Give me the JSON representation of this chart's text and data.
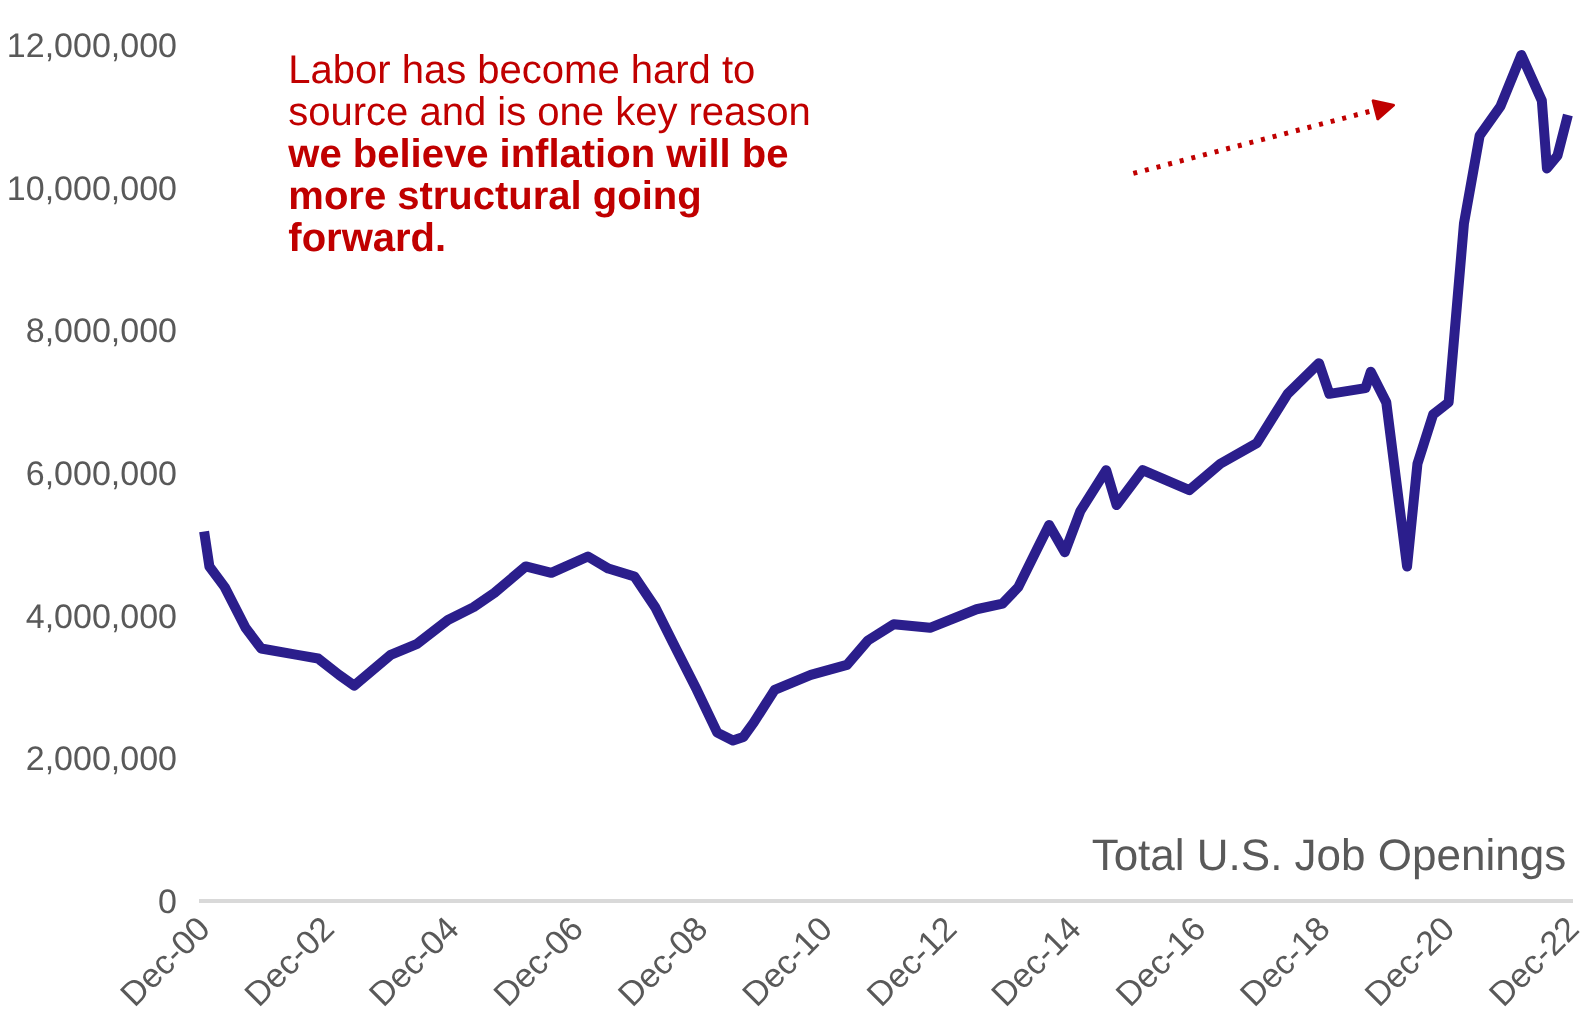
{
  "chart_data": {
    "type": "line",
    "title": "Total U.S. Job Openings",
    "annotations": [
      "Labor has become hard to\nsource and is one key reason",
      "we believe inflation will be\nmore structural going\nforward."
    ],
    "x": [
      "2000-12",
      "2001-01",
      "2001-04",
      "2001-08",
      "2001-11",
      "2002-06",
      "2002-10",
      "2003-02",
      "2003-05",
      "2003-12",
      "2004-05",
      "2004-11",
      "2005-04",
      "2005-08",
      "2006-02",
      "2006-07",
      "2007-02",
      "2007-06",
      "2007-11",
      "2008-03",
      "2008-07",
      "2008-11",
      "2009-03",
      "2009-06",
      "2009-08",
      "2009-10",
      "2010-02",
      "2010-09",
      "2011-04",
      "2011-08",
      "2012-01",
      "2012-08",
      "2013-05",
      "2013-10",
      "2014-01",
      "2014-05",
      "2014-07",
      "2014-10",
      "2015-01",
      "2015-06",
      "2015-08",
      "2016-01",
      "2016-10",
      "2017-04",
      "2017-11",
      "2018-05",
      "2018-11",
      "2019-01",
      "2019-08",
      "2019-09",
      "2019-12",
      "2020-04",
      "2020-06",
      "2020-09",
      "2020-12",
      "2021-03",
      "2021-06",
      "2021-10",
      "2022-02",
      "2022-06",
      "2022-07",
      "2022-09",
      "2022-11"
    ],
    "series": [
      {
        "color": "#2b1e8c",
        "values": [
          5180000,
          4690000,
          4400000,
          3830000,
          3540000,
          3450000,
          3400000,
          3170000,
          3020000,
          3450000,
          3600000,
          3940000,
          4120000,
          4320000,
          4690000,
          4600000,
          4830000,
          4660000,
          4550000,
          4120000,
          3540000,
          2960000,
          2360000,
          2250000,
          2300000,
          2500000,
          2960000,
          3170000,
          3310000,
          3650000,
          3880000,
          3830000,
          4090000,
          4170000,
          4400000,
          4980000,
          5270000,
          4890000,
          5470000,
          6040000,
          5550000,
          6040000,
          5760000,
          6130000,
          6420000,
          7110000,
          7540000,
          7110000,
          7190000,
          7420000,
          6990000,
          4690000,
          6130000,
          6820000,
          6990000,
          9500000,
          10730000,
          11140000,
          11860000,
          11220000,
          10270000,
          10450000,
          11020000
        ]
      }
    ],
    "xlim": [
      "2000-11",
      "2022-12"
    ],
    "xticks": [
      {
        "value": "2000-12",
        "label": "Dec-00"
      },
      {
        "value": "2002-12",
        "label": "Dec-02"
      },
      {
        "value": "2004-12",
        "label": "Dec-04"
      },
      {
        "value": "2006-12",
        "label": "Dec-06"
      },
      {
        "value": "2008-12",
        "label": "Dec-08"
      },
      {
        "value": "2010-12",
        "label": "Dec-10"
      },
      {
        "value": "2012-12",
        "label": "Dec-12"
      },
      {
        "value": "2014-12",
        "label": "Dec-14"
      },
      {
        "value": "2016-12",
        "label": "Dec-16"
      },
      {
        "value": "2018-12",
        "label": "Dec-18"
      },
      {
        "value": "2020-12",
        "label": "Dec-20"
      },
      {
        "value": "2022-12",
        "label": "Dec-22"
      }
    ],
    "ylim": [
      0,
      12000000
    ],
    "yticks": [
      0,
      {
        "value": 2000000,
        "label": "2,000,000"
      },
      {
        "value": 4000000,
        "label": "4,000,000"
      },
      {
        "value": 6000000,
        "label": "6,000,000"
      },
      {
        "value": 8000000,
        "label": "8,000,000"
      },
      {
        "value": 10000000,
        "label": "10,000,000"
      },
      {
        "value": 12000000,
        "label": "12,000,000"
      }
    ],
    "line_style": "solid"
  }
}
